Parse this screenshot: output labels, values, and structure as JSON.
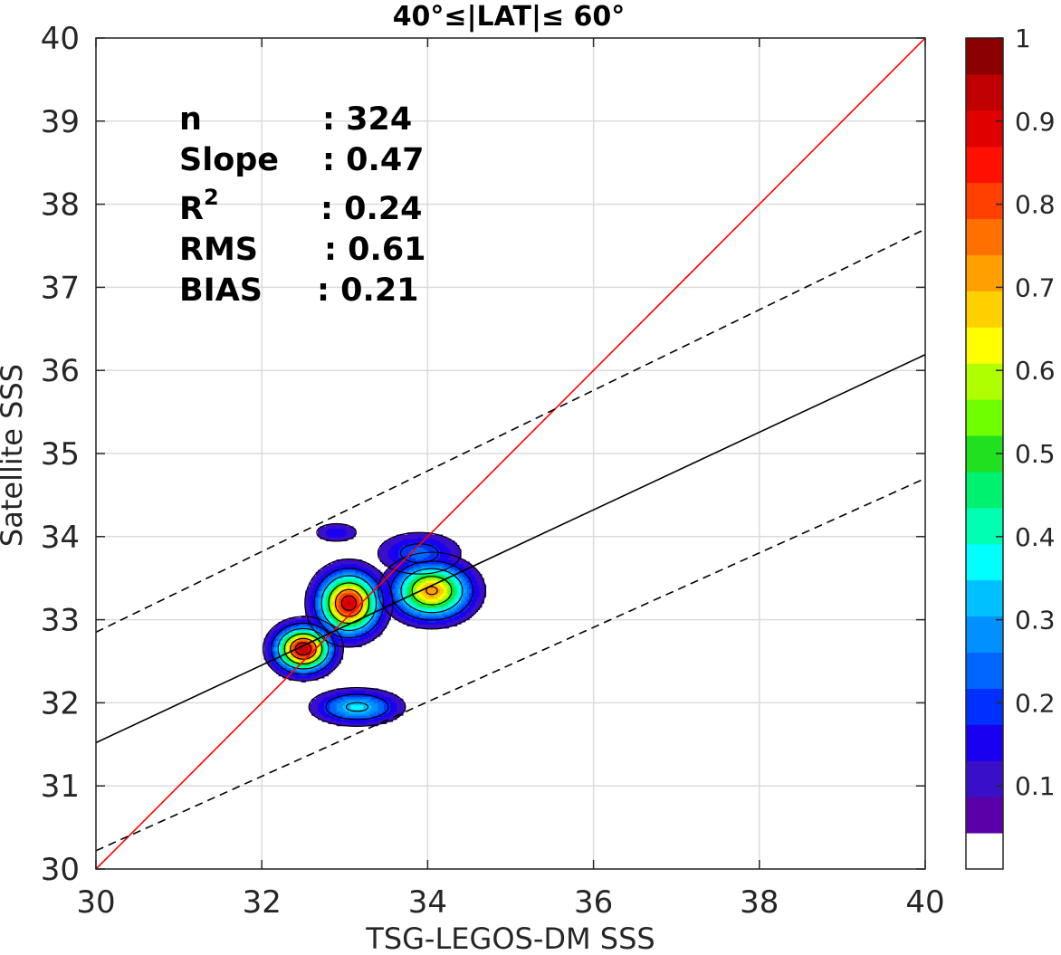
{
  "chart_data": {
    "type": "contour-density-scatter",
    "title": "40°≤|LAT|≤ 60°",
    "xlabel": "TSG-LEGOS-DM SSS",
    "ylabel": "Satellite SSS",
    "xlim": [
      30,
      40
    ],
    "ylim": [
      30,
      40
    ],
    "xticks": [
      "30",
      "32",
      "34",
      "36",
      "38",
      "40"
    ],
    "yticks": [
      "30",
      "31",
      "32",
      "33",
      "34",
      "35",
      "36",
      "37",
      "38",
      "39",
      "40"
    ],
    "grid": true,
    "stats": {
      "n_label": "n",
      "n_value": ": 324",
      "slope_label": "Slope",
      "slope_value": ": 0.47",
      "r2_label": "R",
      "r2_sup": "2",
      "r2_value": ": 0.24",
      "rms_label": "RMS",
      "rms_value": ": 0.61",
      "bias_label": "BIAS",
      "bias_value": ": 0.21"
    },
    "lines": {
      "identity": {
        "x": [
          30,
          40
        ],
        "y": [
          30,
          40
        ],
        "color": "#ff0000",
        "style": "solid"
      },
      "fit": {
        "x": [
          30,
          40
        ],
        "y": [
          31.52,
          36.19
        ],
        "color": "#000000",
        "style": "solid"
      },
      "upper": {
        "x": [
          30,
          40
        ],
        "y": [
          32.85,
          37.7
        ],
        "color": "#000000",
        "style": "dashed"
      },
      "lower": {
        "x": [
          30,
          40
        ],
        "y": [
          30.22,
          34.7
        ],
        "color": "#000000",
        "style": "dashed"
      }
    },
    "density_peaks": [
      {
        "x": 32.5,
        "y": 32.65,
        "peak": 0.95,
        "sx": 0.2,
        "sy": 0.16
      },
      {
        "x": 33.05,
        "y": 33.2,
        "peak": 0.92,
        "sx": 0.22,
        "sy": 0.22
      },
      {
        "x": 34.05,
        "y": 33.35,
        "peak": 0.72,
        "sx": 0.28,
        "sy": 0.2
      },
      {
        "x": 33.15,
        "y": 31.95,
        "peak": 0.33,
        "sx": 0.3,
        "sy": 0.12
      },
      {
        "x": 32.9,
        "y": 34.05,
        "peak": 0.12,
        "sx": 0.18,
        "sy": 0.08
      },
      {
        "x": 33.9,
        "y": 33.8,
        "peak": 0.2,
        "sx": 0.3,
        "sy": 0.15
      }
    ],
    "colorbar": {
      "min": 0,
      "max": 1,
      "tick_values": [
        0.1,
        0.2,
        0.3,
        0.4,
        0.5,
        0.6,
        0.7,
        0.8,
        0.9,
        1
      ],
      "tick_labels": [
        "0.1",
        "0.2",
        "0.3",
        "0.4",
        "0.5",
        "0.6",
        "0.7",
        "0.8",
        "0.9",
        "1"
      ],
      "bands": [
        "#ffffff",
        "#5a00a8",
        "#3a0fc8",
        "#1a00f0",
        "#0030ff",
        "#0066ff",
        "#0090ff",
        "#00c0ff",
        "#00ffff",
        "#00ffb0",
        "#00f070",
        "#20e020",
        "#70ff00",
        "#b0ff00",
        "#ffff00",
        "#ffd000",
        "#ffa000",
        "#ff7000",
        "#ff4000",
        "#ff1000",
        "#e00000",
        "#c00000",
        "#8b0000"
      ]
    }
  }
}
